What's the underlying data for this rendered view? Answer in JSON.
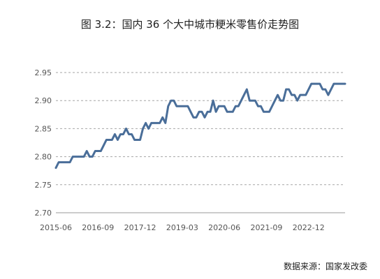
{
  "title": "图 3.2：国内 36 个大中城市粳米零售价走势图",
  "source": "数据来源：国家发改委",
  "colors": {
    "line": "#4a6e99",
    "grid": "#a6a6a6",
    "axis": "#999999"
  },
  "chart_data": {
    "type": "line",
    "title": "图 3.2：国内 36 个大中城市粳米零售价走势图",
    "xlabel": "",
    "ylabel": "",
    "ylim": [
      2.7,
      2.95
    ],
    "yticks": [
      "2.95",
      "2.90",
      "2.85",
      "2.80",
      "2.75",
      "2.70"
    ],
    "xticks": [
      "2015-06",
      "2016-09",
      "2017-12",
      "2019-03",
      "2020-06",
      "2021-09",
      "2022-12"
    ],
    "grid": "horizontal dashed",
    "legend": "none",
    "x": [
      "2015-06",
      "2015-07",
      "2015-08",
      "2015-09",
      "2015-10",
      "2015-11",
      "2015-12",
      "2016-01",
      "2016-02",
      "2016-03",
      "2016-04",
      "2016-05",
      "2016-06",
      "2016-07",
      "2016-08",
      "2016-09",
      "2016-10",
      "2016-11",
      "2016-12",
      "2017-01",
      "2017-02",
      "2017-03",
      "2017-04",
      "2017-05",
      "2017-06",
      "2017-07",
      "2017-08",
      "2017-09",
      "2017-10",
      "2017-11",
      "2017-12",
      "2018-01",
      "2018-02",
      "2018-03",
      "2018-04",
      "2018-05",
      "2018-06",
      "2018-07",
      "2018-08",
      "2018-09",
      "2018-10",
      "2018-11",
      "2018-12",
      "2019-01",
      "2019-02",
      "2019-03",
      "2019-04",
      "2019-05",
      "2019-06",
      "2019-07",
      "2019-08",
      "2019-09",
      "2019-10",
      "2019-11",
      "2019-12",
      "2020-01",
      "2020-02",
      "2020-03",
      "2020-04",
      "2020-05",
      "2020-06",
      "2020-07",
      "2020-08",
      "2020-09",
      "2020-10",
      "2020-11",
      "2020-12",
      "2021-01",
      "2021-02",
      "2021-03",
      "2021-04",
      "2021-05",
      "2021-06",
      "2021-07",
      "2021-08",
      "2021-09",
      "2021-10",
      "2021-11",
      "2021-12",
      "2022-01",
      "2022-02",
      "2022-03",
      "2022-04",
      "2022-05",
      "2022-06",
      "2022-07",
      "2022-08",
      "2022-09",
      "2022-10",
      "2022-11",
      "2022-12",
      "2023-01",
      "2023-02",
      "2023-03",
      "2023-04",
      "2023-05",
      "2023-06",
      "2023-07",
      "2023-08",
      "2023-09",
      "2023-10",
      "2023-11",
      "2023-12",
      "2024-01"
    ],
    "series": [
      {
        "values": [
          2.78,
          2.79,
          2.79,
          2.79,
          2.79,
          2.79,
          2.8,
          2.8,
          2.8,
          2.8,
          2.8,
          2.81,
          2.8,
          2.8,
          2.81,
          2.81,
          2.81,
          2.82,
          2.83,
          2.83,
          2.83,
          2.84,
          2.83,
          2.84,
          2.84,
          2.85,
          2.84,
          2.84,
          2.83,
          2.83,
          2.83,
          2.85,
          2.86,
          2.85,
          2.86,
          2.86,
          2.86,
          2.86,
          2.87,
          2.86,
          2.89,
          2.9,
          2.9,
          2.89,
          2.89,
          2.89,
          2.89,
          2.89,
          2.88,
          2.87,
          2.87,
          2.88,
          2.88,
          2.87,
          2.88,
          2.88,
          2.9,
          2.88,
          2.89,
          2.89,
          2.89,
          2.88,
          2.88,
          2.88,
          2.89,
          2.89,
          2.9,
          2.91,
          2.92,
          2.9,
          2.9,
          2.9,
          2.89,
          2.89,
          2.88,
          2.88,
          2.88,
          2.89,
          2.9,
          2.91,
          2.9,
          2.9,
          2.92,
          2.92,
          2.91,
          2.91,
          2.9,
          2.91,
          2.91,
          2.91,
          2.92,
          2.93,
          2.93,
          2.93,
          2.93,
          2.92,
          2.92,
          2.91,
          2.92,
          2.93,
          2.93,
          2.93,
          2.93,
          2.93
        ]
      }
    ]
  }
}
